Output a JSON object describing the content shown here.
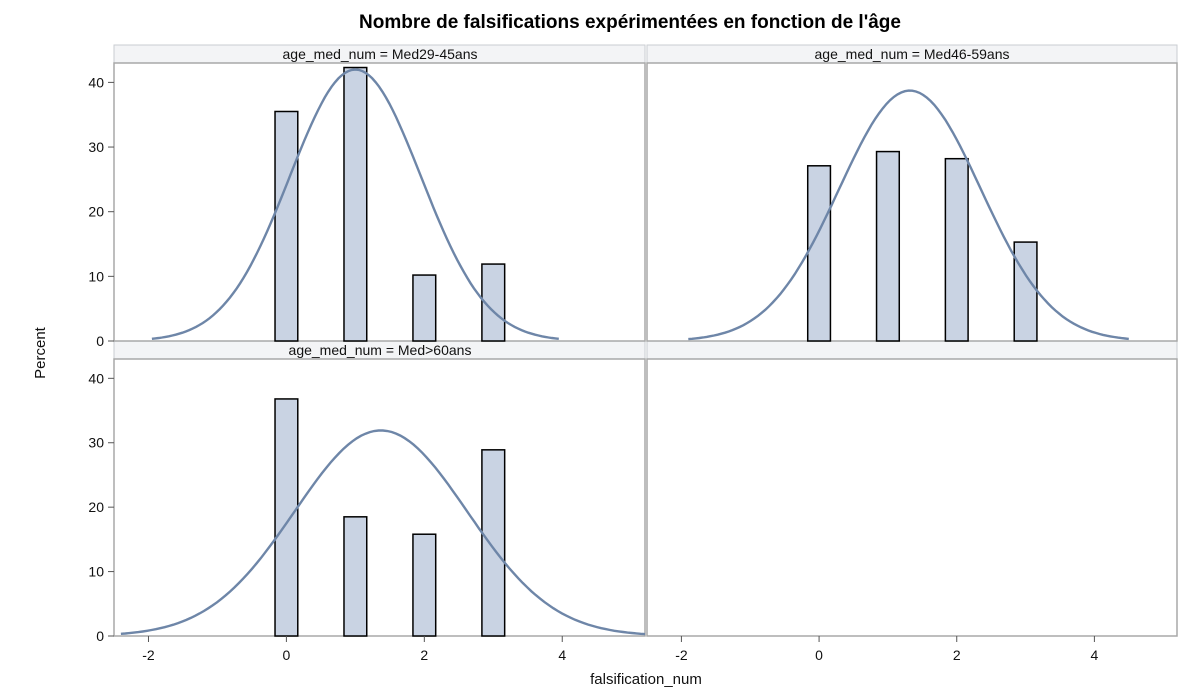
{
  "chart_data": {
    "type": "bar",
    "title": "Nombre de falsifications expérimentées en fonction de l'âge",
    "xlabel": "falsification_num",
    "ylabel": "Percent",
    "xlim": [
      -2.5,
      5.2
    ],
    "ylim": [
      0,
      43
    ],
    "x_ticks": [
      -2,
      0,
      2,
      4
    ],
    "y_ticks": [
      0,
      10,
      20,
      30,
      40
    ],
    "colors": {
      "bar_fill": "#c9d3e3",
      "bar_stroke": "#000000",
      "curve": "#6e86a8"
    },
    "panels": [
      {
        "label": "age_med_num = Med29-45ans",
        "x": [
          0,
          1,
          2,
          3
        ],
        "values": [
          35.5,
          42.3,
          10.2,
          11.9
        ],
        "normal_curve": {
          "mean": 1.0,
          "sd": 0.95,
          "range": [
            -1.95,
            3.95
          ]
        }
      },
      {
        "label": "age_med_num = Med46-59ans",
        "x": [
          0,
          1,
          2,
          3
        ],
        "values": [
          27.1,
          29.3,
          28.2,
          15.3
        ],
        "normal_curve": {
          "mean": 1.32,
          "sd": 1.03,
          "range": [
            -1.9,
            4.5
          ]
        }
      },
      {
        "label": "age_med_num = Med>60ans",
        "x": [
          0,
          1,
          2,
          3
        ],
        "values": [
          36.8,
          18.5,
          15.8,
          28.9
        ],
        "normal_curve": {
          "mean": 1.37,
          "sd": 1.25,
          "range": [
            -2.4,
            5.2
          ]
        }
      }
    ]
  }
}
